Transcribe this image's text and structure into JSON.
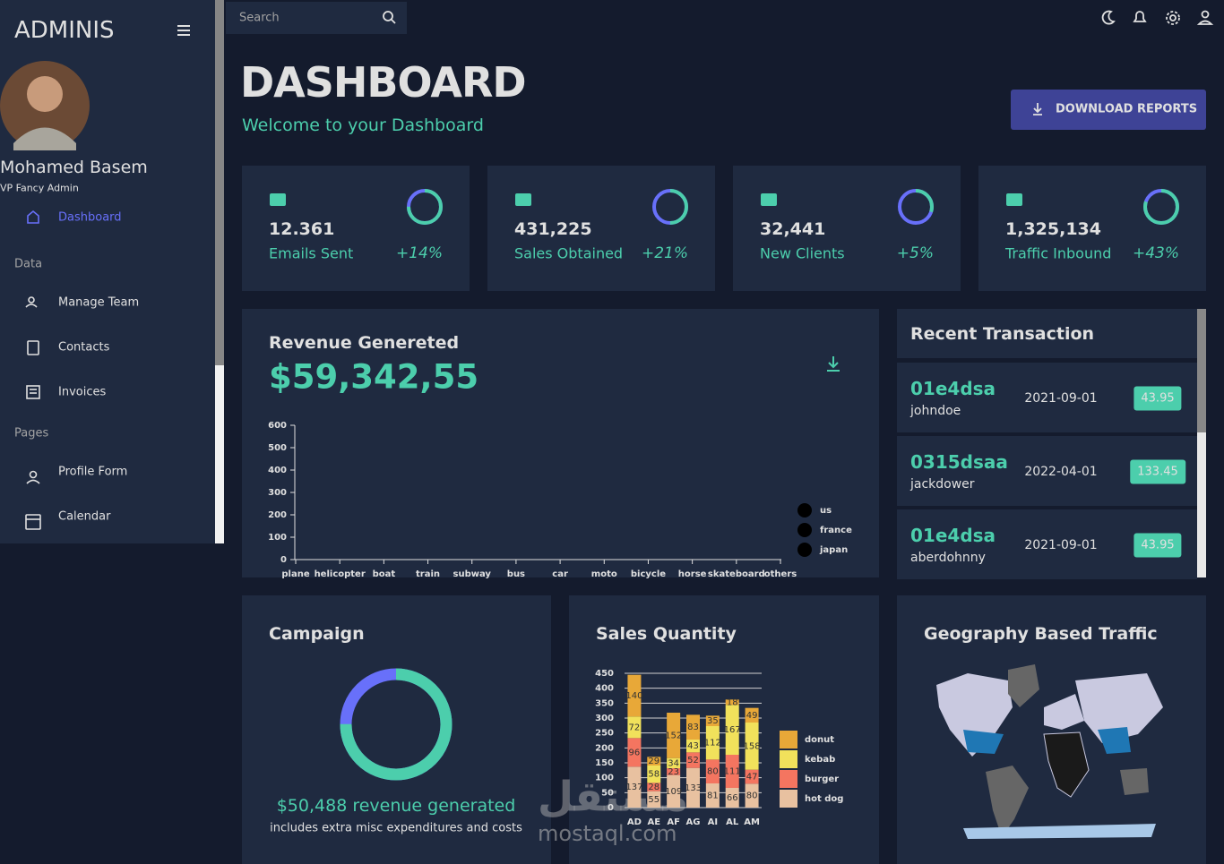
{
  "sidebar": {
    "brand": "ADMINIS",
    "user": {
      "name": "Mohamed Basem",
      "role": "VP Fancy Admin"
    },
    "active": "Dashboard",
    "sections": [
      {
        "title": "Data",
        "items": [
          "Manage Team",
          "Contacts",
          "Invoices"
        ]
      },
      {
        "title": "Pages",
        "items": [
          "Profile Form",
          "Calendar"
        ]
      }
    ]
  },
  "topbar": {
    "search": "Search"
  },
  "header": {
    "title": "DASHBOARD",
    "subtitle": "Welcome to your Dashboard",
    "button": "DOWNLOAD REPORTS"
  },
  "stats": [
    {
      "value": "12.361",
      "label": "Emails Sent",
      "change": "+14%",
      "progress": 75
    },
    {
      "value": "431,225",
      "label": "Sales Obtained",
      "change": "+21%",
      "progress": 50
    },
    {
      "value": "32,441",
      "label": "New Clients",
      "change": "+5%",
      "progress": 30
    },
    {
      "value": "1,325,134",
      "label": "Traffic Inbound",
      "change": "+43%",
      "progress": 80
    }
  ],
  "revenue": {
    "title": "Revenue Genereted",
    "amount": "$59,342,55"
  },
  "chart_data": [
    {
      "type": "line",
      "categories": [
        "plane",
        "helicopter",
        "boat",
        "train",
        "subway",
        "bus",
        "car",
        "moto",
        "bicycle",
        "horse",
        "skateboard",
        "others"
      ],
      "series": [
        {
          "name": "us",
          "color": "#000000",
          "values": [
            null,
            null,
            null,
            null,
            null,
            null,
            null,
            null,
            null,
            null,
            null,
            null
          ]
        },
        {
          "name": "france",
          "color": "#000000",
          "values": [
            null,
            null,
            null,
            null,
            null,
            null,
            null,
            null,
            null,
            null,
            null,
            null
          ]
        },
        {
          "name": "japan",
          "color": "#000000",
          "values": [
            null,
            null,
            null,
            null,
            null,
            null,
            null,
            null,
            null,
            null,
            null,
            null
          ]
        }
      ],
      "ylim": [
        0,
        600
      ],
      "yticks": [
        0,
        100,
        200,
        300,
        400,
        500,
        600
      ]
    },
    {
      "type": "stacked_bar",
      "title": "Sales Quantity",
      "categories": [
        "AD",
        "AE",
        "AF",
        "AG",
        "AI",
        "AL",
        "AM"
      ],
      "series": [
        {
          "name": "donut",
          "color": "#e8a838",
          "values": [
            140,
            29,
            152,
            83,
            35,
            18,
            49
          ]
        },
        {
          "name": "kebab",
          "color": "#f1e15b",
          "values": [
            72,
            58,
            34,
            43,
            112,
            167,
            158
          ]
        },
        {
          "name": "burger",
          "color": "#f47560",
          "values": [
            96,
            28,
            23,
            52,
            80,
            111,
            47
          ]
        },
        {
          "name": "hot dog",
          "color": "#e8c1a0",
          "values": [
            137,
            55,
            109,
            133,
            81,
            66,
            80
          ]
        }
      ],
      "ylim": [
        0,
        450
      ],
      "yticks": [
        0,
        50,
        100,
        150,
        200,
        250,
        300,
        350,
        400,
        450
      ],
      "grid": true
    }
  ],
  "transactions": {
    "title": "Recent Transaction",
    "items": [
      {
        "id": "01e4dsa",
        "user": "johndoe",
        "date": "2021-09-01",
        "cost": 43.95
      },
      {
        "id": "0315dsaa",
        "user": "jackdower",
        "date": "2022-04-01",
        "cost": 133.45
      },
      {
        "id": "01e4dsa",
        "user": "aberdohnny",
        "date": "2021-09-01",
        "cost": 43.95
      }
    ]
  },
  "campaign": {
    "title": "Campaign",
    "progress": 75,
    "revenue": "$50,488 revenue generated",
    "note": "includes extra misc expenditures and costs"
  },
  "geography": {
    "title": "Geography Based Traffic"
  },
  "watermark": {
    "logo": "مستقل",
    "site": "mostaql.com"
  }
}
